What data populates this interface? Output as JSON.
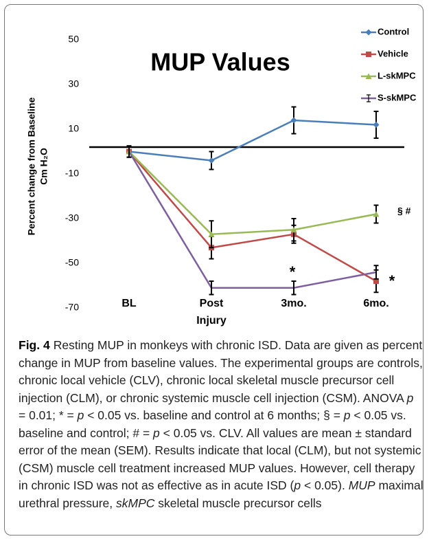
{
  "chart_data": {
    "type": "line",
    "title": "MUP Values",
    "x_label": "Injury",
    "y_label": [
      "Percent change from Baseline",
      "Cm H₂O"
    ],
    "categories": [
      "BL",
      "Post",
      "3mo.",
      "6mo."
    ],
    "series": [
      {
        "name": "Control",
        "color": "#4a7ebb",
        "marker": "diamond",
        "values": [
          0,
          -4,
          14,
          12
        ],
        "errors": [
          2.5,
          4,
          6,
          6
        ]
      },
      {
        "name": "Vehicle",
        "color": "#be4b48",
        "marker": "square",
        "values": [
          0,
          -43,
          -37,
          -58
        ],
        "errors": [
          2.5,
          5,
          4,
          5
        ]
      },
      {
        "name": "L-skMPC",
        "color": "#98b954",
        "marker": "triangle",
        "values": [
          0,
          -37,
          -35,
          -28
        ],
        "errors": [
          2.5,
          6,
          5,
          4
        ]
      },
      {
        "name": "S-skMPC",
        "color": "#7d5fa0",
        "marker": "errorbar",
        "values": [
          0,
          -61,
          -61,
          -54
        ],
        "errors": [
          2.5,
          3,
          3,
          3
        ]
      }
    ],
    "reference_line": 2,
    "ylim": [
      -70,
      60
    ],
    "yticks": [
      -70,
      -50,
      -30,
      -10,
      10,
      30,
      50
    ],
    "legend": "upper right",
    "annotations": [
      "*",
      "*",
      "§ #"
    ]
  },
  "caption": {
    "label": "Fig. 4",
    "runs": [
      {
        "text": "Resting MUP in monkeys with chronic ISD. Data are given as percent change in MUP from baseline values. The experimental groups are controls, chronic local vehicle (CLV), chronic local skeletal muscle precursor cell injection (CLM), or chronic systemic muscle cell injection (CSM). ANOVA ",
        "italic": false
      },
      {
        "text": "p",
        "italic": true
      },
      {
        "text": " = 0.01; * = ",
        "italic": false
      },
      {
        "text": "p",
        "italic": true
      },
      {
        "text": " < 0.05 vs. baseline and control at 6 months; § = ",
        "italic": false
      },
      {
        "text": "p",
        "italic": true
      },
      {
        "text": " < 0.05 vs. baseline and control; # = ",
        "italic": false
      },
      {
        "text": "p",
        "italic": true
      },
      {
        "text": " < 0.05 vs. CLV. All values are mean ± standard error of the mean (SEM). Results indicate that local (CLM), but not systemic (CSM) muscle cell treatment increased MUP values. However, cell therapy in chronic ISD was not as effective as in acute ISD (",
        "italic": false
      },
      {
        "text": "p",
        "italic": true
      },
      {
        "text": " < 0.05). ",
        "italic": false
      },
      {
        "text": "MUP",
        "italic": true
      },
      {
        "text": " maximal urethral pressure, ",
        "italic": false
      },
      {
        "text": "skMPC",
        "italic": true
      },
      {
        "text": " skeletal muscle precursor cells",
        "italic": false
      }
    ]
  }
}
